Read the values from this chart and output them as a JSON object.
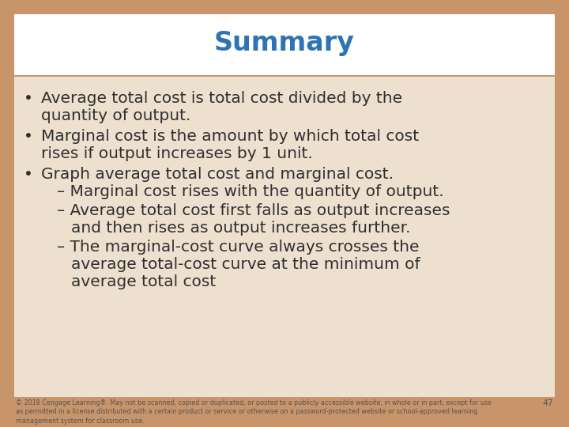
{
  "title": "Summary",
  "title_color": "#2E74B5",
  "title_fontsize": 24,
  "background_color": "#C8956A",
  "header_bg_color": "#FFFFFF",
  "body_bg_color": "#EDE0CE",
  "text_color": "#2F2F2F",
  "bullet1_line1": "Average total cost is total cost divided by the",
  "bullet1_line2": "quantity of output.",
  "bullet2_line1": "Marginal cost is the amount by which total cost",
  "bullet2_line2": "rises if output increases by 1 unit.",
  "bullet3": "Graph average total cost and marginal cost.",
  "sub1": "– Marginal cost rises with the quantity of output.",
  "sub2_line1": "– Average total cost first falls as output increases",
  "sub2_line2": "   and then rises as output increases further.",
  "sub3_line1": "– The marginal-cost curve always crosses the",
  "sub3_line2": "   average total-cost curve at the minimum of",
  "sub3_line3": "   average total cost",
  "footer_text": "© 2018 Cengage Learning®. May not be scanned, copied or duplicated, or posted to a publicly accessible website, in whole or in part, except for use\nas permitted in a license distributed with a certain product or service or otherwise on a password-protected website or school-approved learning\nmanagement system for classroom use.",
  "footer_page": "47",
  "footer_fontsize": 5.8,
  "body_fontsize": 14.5
}
